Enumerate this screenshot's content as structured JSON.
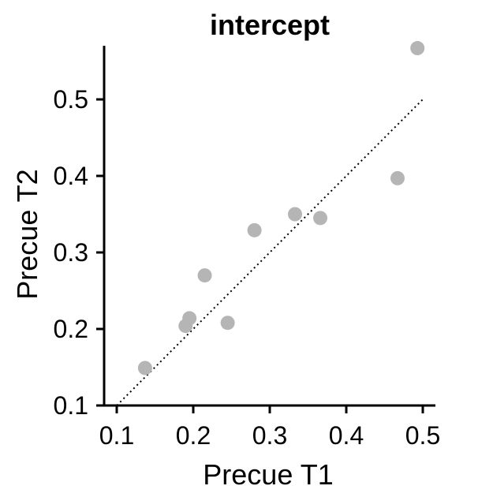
{
  "chart_data": {
    "type": "scatter",
    "title": "intercept",
    "xlabel": "Precue T1",
    "ylabel": "Precue T2",
    "xlim": [
      0.08,
      0.52
    ],
    "ylim": [
      0.1,
      0.58
    ],
    "xticks": [
      0.1,
      0.2,
      0.3,
      0.4,
      0.5
    ],
    "yticks": [
      0.1,
      0.2,
      0.3,
      0.4,
      0.5
    ],
    "xtick_labels": [
      "0.1",
      "0.2",
      "0.3",
      "0.4",
      "0.5"
    ],
    "ytick_labels": [
      "0.1",
      "0.2",
      "0.3",
      "0.4",
      "0.5"
    ],
    "grid": false,
    "legend": "none",
    "point_color": "#b5b5b5",
    "reference_line": {
      "style": "dotted",
      "color": "#000000",
      "from": [
        0.1,
        0.1
      ],
      "to": [
        0.5,
        0.5
      ]
    },
    "points": [
      {
        "x": 0.137,
        "y": 0.149
      },
      {
        "x": 0.19,
        "y": 0.204
      },
      {
        "x": 0.195,
        "y": 0.214
      },
      {
        "x": 0.215,
        "y": 0.27
      },
      {
        "x": 0.245,
        "y": 0.208
      },
      {
        "x": 0.28,
        "y": 0.329
      },
      {
        "x": 0.333,
        "y": 0.35
      },
      {
        "x": 0.366,
        "y": 0.345
      },
      {
        "x": 0.467,
        "y": 0.397
      },
      {
        "x": 0.493,
        "y": 0.567
      }
    ]
  }
}
